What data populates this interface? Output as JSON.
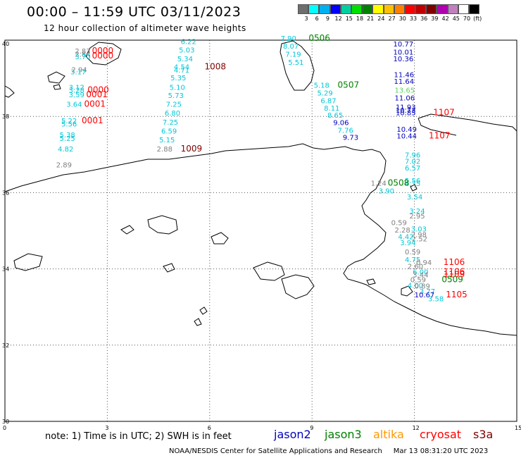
{
  "header": {
    "title": "00:00 – 11:59 UTC 03/11/2023",
    "subtitle": "12 hour collection of altimeter wave heights"
  },
  "colorbar": {
    "colors": [
      "#6e6e6e",
      "#00ffff",
      "#00b0f0",
      "#0000ff",
      "#00d0a0",
      "#00e000",
      "#008000",
      "#ffff00",
      "#ffc000",
      "#ff8000",
      "#ff0000",
      "#c00000",
      "#800000",
      "#b000b0",
      "#c080c0",
      "#ffffff",
      "#000000"
    ],
    "labels": [
      "3",
      "6",
      "9",
      "12",
      "15",
      "18",
      "21",
      "24",
      "27",
      "30",
      "33",
      "36",
      "39",
      "42",
      "45",
      "70",
      "(ft)"
    ]
  },
  "axes": {
    "lat_labels": [
      "40",
      "38",
      "36",
      "34",
      "32",
      "30"
    ],
    "lon_labels": [
      "0",
      "3",
      "6",
      "9",
      "12",
      "15"
    ],
    "lon_range": [
      0,
      15
    ],
    "lat_range": [
      30,
      40
    ],
    "grid": "dotted"
  },
  "colors": {
    "cyan": "#00c8d8",
    "gray": "#808080",
    "red": "#ff0000",
    "darkred": "#800000",
    "blue": "#0000c0",
    "green": "#008000",
    "lightgreen": "#60d060",
    "coast": "#000000"
  },
  "observations": [
    {
      "t": "2.83",
      "lon": 2.05,
      "lat": 39.65,
      "c": "gray"
    },
    {
      "t": "2.84",
      "lon": 2.05,
      "lat": 39.57,
      "c": "gray"
    },
    {
      "t": "3.70",
      "lon": 2.05,
      "lat": 39.5,
      "c": "cyan"
    },
    {
      "t": "2.94",
      "lon": 1.95,
      "lat": 39.16,
      "c": "gray"
    },
    {
      "t": "3.17",
      "lon": 1.92,
      "lat": 39.1,
      "c": "cyan"
    },
    {
      "t": "3.12",
      "lon": 1.87,
      "lat": 38.7,
      "c": "cyan"
    },
    {
      "t": "3.28",
      "lon": 1.87,
      "lat": 38.62,
      "c": "cyan"
    },
    {
      "t": "3.59",
      "lon": 1.87,
      "lat": 38.5,
      "c": "cyan"
    },
    {
      "t": "3.64",
      "lon": 1.8,
      "lat": 38.25,
      "c": "cyan"
    },
    {
      "t": "5.22",
      "lon": 1.65,
      "lat": 37.82,
      "c": "cyan"
    },
    {
      "t": "5.56",
      "lon": 1.65,
      "lat": 37.74,
      "c": "cyan"
    },
    {
      "t": "5.38",
      "lon": 1.6,
      "lat": 37.45,
      "c": "cyan"
    },
    {
      "t": "5.25",
      "lon": 1.6,
      "lat": 37.36,
      "c": "cyan"
    },
    {
      "t": "4.82",
      "lon": 1.55,
      "lat": 37.08,
      "c": "cyan"
    },
    {
      "t": "2.89",
      "lon": 1.5,
      "lat": 36.66,
      "c": "gray"
    },
    {
      "t": "6.22",
      "lon": 5.15,
      "lat": 39.9,
      "c": "cyan"
    },
    {
      "t": "5.03",
      "lon": 5.1,
      "lat": 39.68,
      "c": "cyan"
    },
    {
      "t": "5.34",
      "lon": 5.05,
      "lat": 39.45,
      "c": "cyan"
    },
    {
      "t": "4.54",
      "lon": 4.95,
      "lat": 39.23,
      "c": "cyan"
    },
    {
      "t": "4.71",
      "lon": 4.95,
      "lat": 39.15,
      "c": "cyan"
    },
    {
      "t": "5.35",
      "lon": 4.85,
      "lat": 38.95,
      "c": "cyan"
    },
    {
      "t": "5.10",
      "lon": 4.82,
      "lat": 38.7,
      "c": "cyan"
    },
    {
      "t": "5.73",
      "lon": 4.78,
      "lat": 38.48,
      "c": "cyan"
    },
    {
      "t": "7.25",
      "lon": 4.72,
      "lat": 38.25,
      "c": "cyan"
    },
    {
      "t": "6.80",
      "lon": 4.68,
      "lat": 38.02,
      "c": "cyan"
    },
    {
      "t": "7.25",
      "lon": 4.62,
      "lat": 37.78,
      "c": "cyan"
    },
    {
      "t": "6.59",
      "lon": 4.58,
      "lat": 37.55,
      "c": "cyan"
    },
    {
      "t": "5.15",
      "lon": 4.52,
      "lat": 37.32,
      "c": "cyan"
    },
    {
      "t": "2.88",
      "lon": 4.45,
      "lat": 37.08,
      "c": "gray"
    },
    {
      "t": "7.90",
      "lon": 8.08,
      "lat": 39.98,
      "c": "cyan"
    },
    {
      "t": "8.07",
      "lon": 8.15,
      "lat": 39.78,
      "c": "cyan"
    },
    {
      "t": "7.19",
      "lon": 8.22,
      "lat": 39.57,
      "c": "cyan"
    },
    {
      "t": "5.51",
      "lon": 8.3,
      "lat": 39.35,
      "c": "cyan"
    },
    {
      "t": "5.18",
      "lon": 9.05,
      "lat": 38.75,
      "c": "cyan"
    },
    {
      "t": "5.29",
      "lon": 9.15,
      "lat": 38.55,
      "c": "cyan"
    },
    {
      "t": "6.87",
      "lon": 9.25,
      "lat": 38.35,
      "c": "cyan"
    },
    {
      "t": "8.11",
      "lon": 9.35,
      "lat": 38.15,
      "c": "cyan"
    },
    {
      "t": "8.65",
      "lon": 9.45,
      "lat": 37.97,
      "c": "cyan"
    },
    {
      "t": "9.06",
      "lon": 9.62,
      "lat": 37.77,
      "c": "blue"
    },
    {
      "t": "7.76",
      "lon": 9.75,
      "lat": 37.57,
      "c": "cyan"
    },
    {
      "t": "9.73",
      "lon": 9.9,
      "lat": 37.38,
      "c": "blue"
    },
    {
      "t": "10.77",
      "lon": 11.38,
      "lat": 39.83,
      "c": "blue"
    },
    {
      "t": "10.01",
      "lon": 11.38,
      "lat": 39.62,
      "c": "blue"
    },
    {
      "t": "10.36",
      "lon": 11.38,
      "lat": 39.45,
      "c": "blue"
    },
    {
      "t": "11.46",
      "lon": 11.4,
      "lat": 39.03,
      "c": "blue"
    },
    {
      "t": "11.64",
      "lon": 11.4,
      "lat": 38.85,
      "c": "blue"
    },
    {
      "t": "13.65",
      "lon": 11.42,
      "lat": 38.62,
      "c": "lightgreen"
    },
    {
      "t": "11.06",
      "lon": 11.42,
      "lat": 38.42,
      "c": "blue"
    },
    {
      "t": "11.93",
      "lon": 11.45,
      "lat": 38.18,
      "c": "blue"
    },
    {
      "t": "10.73",
      "lon": 11.45,
      "lat": 38.1,
      "c": "blue"
    },
    {
      "t": "10.85",
      "lon": 11.45,
      "lat": 38.03,
      "c": "blue"
    },
    {
      "t": "10.49",
      "lon": 11.48,
      "lat": 37.6,
      "c": "blue"
    },
    {
      "t": "10.44",
      "lon": 11.48,
      "lat": 37.42,
      "c": "blue"
    },
    {
      "t": "7.96",
      "lon": 11.72,
      "lat": 36.92,
      "c": "cyan"
    },
    {
      "t": "7.02",
      "lon": 11.72,
      "lat": 36.76,
      "c": "cyan"
    },
    {
      "t": "6.57",
      "lon": 11.72,
      "lat": 36.58,
      "c": "cyan"
    },
    {
      "t": "5.56",
      "lon": 11.72,
      "lat": 36.25,
      "c": "cyan"
    },
    {
      "t": "4.75",
      "lon": 11.72,
      "lat": 36.17,
      "c": "cyan"
    },
    {
      "t": "3.54",
      "lon": 11.78,
      "lat": 35.82,
      "c": "cyan"
    },
    {
      "t": "3.24",
      "lon": 11.85,
      "lat": 35.45,
      "c": "cyan"
    },
    {
      "t": "2.95",
      "lon": 11.85,
      "lat": 35.32,
      "c": "gray"
    },
    {
      "t": "1.24",
      "lon": 10.72,
      "lat": 36.18,
      "c": "gray"
    },
    {
      "t": "3.90",
      "lon": 10.95,
      "lat": 35.98,
      "c": "cyan"
    },
    {
      "t": "0.59",
      "lon": 11.32,
      "lat": 35.15,
      "c": "gray"
    },
    {
      "t": "2.28",
      "lon": 11.42,
      "lat": 34.95,
      "c": "gray"
    },
    {
      "t": "3.03",
      "lon": 11.9,
      "lat": 34.98,
      "c": "cyan"
    },
    {
      "t": "2.98",
      "lon": 11.9,
      "lat": 34.83,
      "c": "gray"
    },
    {
      "t": "4.42",
      "lon": 11.52,
      "lat": 34.78,
      "c": "cyan"
    },
    {
      "t": "2.52",
      "lon": 11.92,
      "lat": 34.72,
      "c": "gray"
    },
    {
      "t": "3.94",
      "lon": 11.58,
      "lat": 34.62,
      "c": "cyan"
    },
    {
      "t": "0.59",
      "lon": 11.72,
      "lat": 34.38,
      "c": "gray"
    },
    {
      "t": "4.75",
      "lon": 11.72,
      "lat": 34.18,
      "c": "cyan"
    },
    {
      "t": "0.94",
      "lon": 12.05,
      "lat": 34.1,
      "c": "gray"
    },
    {
      "t": "2.60",
      "lon": 11.8,
      "lat": 34.0,
      "c": "gray"
    },
    {
      "t": "6.00",
      "lon": 11.95,
      "lat": 33.85,
      "c": "cyan"
    },
    {
      "t": "3.44",
      "lon": 11.95,
      "lat": 33.78,
      "c": "gray"
    },
    {
      "t": "0.59",
      "lon": 11.88,
      "lat": 33.65,
      "c": "gray"
    },
    {
      "t": "4.00",
      "lon": 11.8,
      "lat": 33.5,
      "c": "cyan"
    },
    {
      "t": "0.89",
      "lon": 12.0,
      "lat": 33.48,
      "c": "gray"
    },
    {
      "t": "3.77",
      "lon": 12.15,
      "lat": 33.35,
      "c": "cyan"
    },
    {
      "t": "10.67",
      "lon": 12.0,
      "lat": 33.25,
      "c": "blue"
    },
    {
      "t": "3.58",
      "lon": 12.4,
      "lat": 33.15,
      "c": "cyan"
    }
  ],
  "track_ids": [
    {
      "t": "0000",
      "lon": 2.55,
      "lat": 39.65,
      "c": "red"
    },
    {
      "t": "0000",
      "lon": 2.55,
      "lat": 39.52,
      "c": "red"
    },
    {
      "t": "0000",
      "lon": 2.42,
      "lat": 38.62,
      "c": "red"
    },
    {
      "t": "0001",
      "lon": 2.38,
      "lat": 38.5,
      "c": "red"
    },
    {
      "t": "0001",
      "lon": 2.32,
      "lat": 38.25,
      "c": "red"
    },
    {
      "t": "0001",
      "lon": 2.25,
      "lat": 37.82,
      "c": "red"
    },
    {
      "t": "1008",
      "lon": 5.85,
      "lat": 39.23,
      "c": "darkred"
    },
    {
      "t": "1009",
      "lon": 5.15,
      "lat": 37.08,
      "c": "darkred"
    },
    {
      "t": "0506",
      "lon": 8.9,
      "lat": 39.98,
      "c": "green"
    },
    {
      "t": "0507",
      "lon": 9.75,
      "lat": 38.75,
      "c": "green"
    },
    {
      "t": "0508",
      "lon": 11.22,
      "lat": 36.18,
      "c": "green"
    },
    {
      "t": "0509",
      "lon": 12.8,
      "lat": 33.65,
      "c": "green"
    },
    {
      "t": "1107",
      "lon": 12.55,
      "lat": 38.03,
      "c": "red"
    },
    {
      "t": "1107",
      "lon": 12.42,
      "lat": 37.42,
      "c": "red"
    },
    {
      "t": "1106",
      "lon": 12.85,
      "lat": 34.1,
      "c": "red"
    },
    {
      "t": "1106",
      "lon": 12.85,
      "lat": 33.85,
      "c": "red"
    },
    {
      "t": "1109",
      "lon": 12.85,
      "lat": 33.78,
      "c": "red"
    },
    {
      "t": "1105",
      "lon": 12.92,
      "lat": 33.25,
      "c": "red"
    }
  ],
  "footer": {
    "note": "note:  1) Time is in UTC;  2) SWH is in feet",
    "satellites": [
      {
        "name": "jason2",
        "color": "#0000c0"
      },
      {
        "name": "jason3",
        "color": "#008000"
      },
      {
        "name": "altika",
        "color": "#ff9900"
      },
      {
        "name": "cryosat",
        "color": "#ff0000"
      },
      {
        "name": "s3a",
        "color": "#800000"
      }
    ],
    "credit_left": "NOAA/NESDIS Center for Satellite Applications and Research",
    "credit_right": "Mar 13 08:31:20 UTC 2023"
  }
}
